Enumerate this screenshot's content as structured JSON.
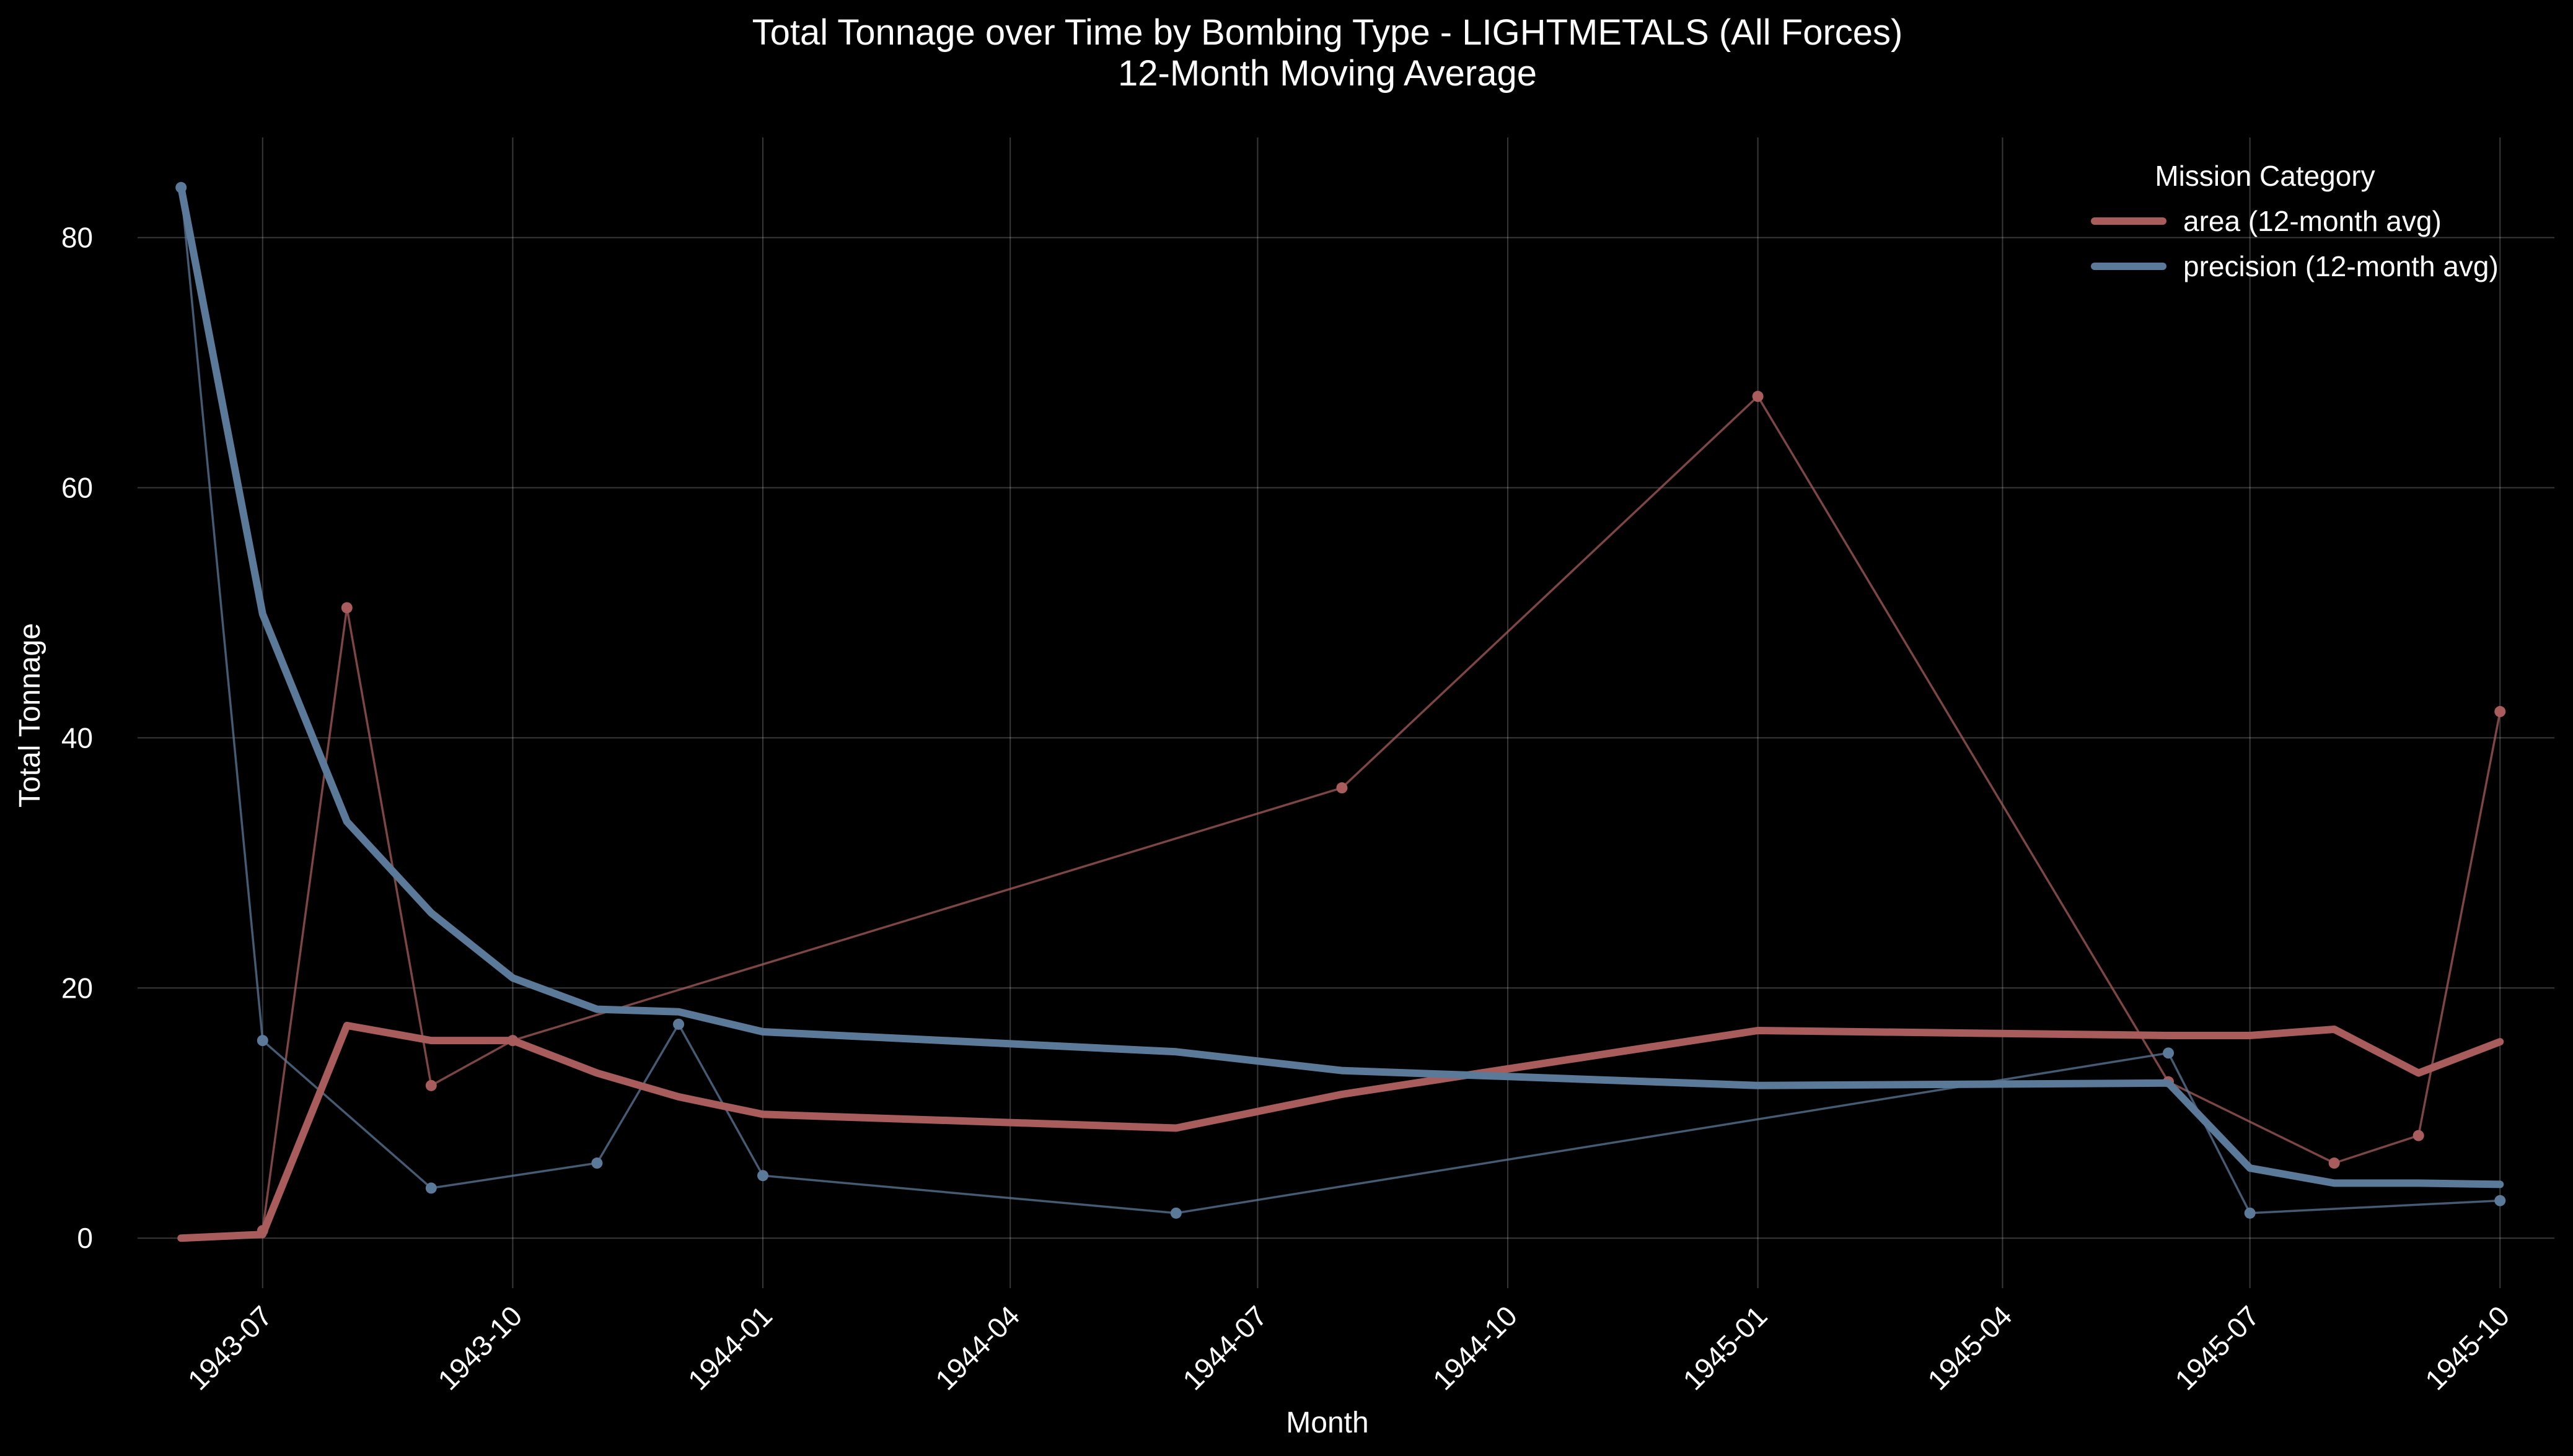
{
  "chart_data": {
    "type": "line",
    "title": "Total Tonnage over Time by Bombing Type - LIGHTMETALS (All Forces)",
    "subtitle": "12-Month Moving Average",
    "xlabel": "Month",
    "ylabel": "Total Tonnage",
    "x_ticks": [
      "1943-07",
      "1943-10",
      "1944-01",
      "1944-04",
      "1944-07",
      "1944-10",
      "1945-01",
      "1945-04",
      "1945-07",
      "1945-10"
    ],
    "y_ticks": [
      0,
      20,
      40,
      60,
      80
    ],
    "ylim": [
      -4,
      88
    ],
    "xlim": [
      "1943-05-16",
      "1945-10-21"
    ],
    "grid": true,
    "background": "#000000",
    "legend": {
      "title": "Mission Category",
      "position": "top-right",
      "entries": [
        {
          "label": "area (12-month avg)",
          "color": "#a85c5c"
        },
        {
          "label": "precision (12-month avg)",
          "color": "#5b7a99"
        }
      ]
    },
    "series": [
      {
        "key": "area_raw",
        "color": "#a85c5c",
        "kind": "raw",
        "points": [
          {
            "x": "1943-07-01",
            "y": 0.6
          },
          {
            "x": "1943-08-01",
            "y": 50.4
          },
          {
            "x": "1943-09-01",
            "y": 12.2
          },
          {
            "x": "1943-10-01",
            "y": 15.8
          },
          {
            "x": "1944-08-01",
            "y": 36.0
          },
          {
            "x": "1945-01-01",
            "y": 67.3
          },
          {
            "x": "1945-06-01",
            "y": 12.5
          },
          {
            "x": "1945-08-01",
            "y": 6.0
          },
          {
            "x": "1945-09-01",
            "y": 8.2
          },
          {
            "x": "1945-10-01",
            "y": 42.1
          }
        ]
      },
      {
        "key": "precision_raw",
        "color": "#5b7a99",
        "kind": "raw",
        "points": [
          {
            "x": "1943-06-01",
            "y": 84.0
          },
          {
            "x": "1943-07-01",
            "y": 15.8
          },
          {
            "x": "1943-09-01",
            "y": 4.0
          },
          {
            "x": "1943-11-01",
            "y": 6.0
          },
          {
            "x": "1943-12-01",
            "y": 17.1
          },
          {
            "x": "1944-01-01",
            "y": 5.0
          },
          {
            "x": "1944-06-01",
            "y": 2.0
          },
          {
            "x": "1945-06-01",
            "y": 14.8
          },
          {
            "x": "1945-07-01",
            "y": 2.0
          },
          {
            "x": "1945-10-01",
            "y": 3.0
          }
        ]
      },
      {
        "key": "area_avg",
        "name": "area (12-month avg)",
        "color": "#a85c5c",
        "kind": "avg",
        "points": [
          {
            "x": "1943-06-01",
            "y": 0.0
          },
          {
            "x": "1943-07-01",
            "y": 0.3
          },
          {
            "x": "1943-08-01",
            "y": 17.0
          },
          {
            "x": "1943-09-01",
            "y": 15.8
          },
          {
            "x": "1943-10-01",
            "y": 15.8
          },
          {
            "x": "1943-11-01",
            "y": 13.2
          },
          {
            "x": "1943-12-01",
            "y": 11.3
          },
          {
            "x": "1944-01-01",
            "y": 9.9
          },
          {
            "x": "1944-06-01",
            "y": 8.8
          },
          {
            "x": "1944-08-01",
            "y": 11.5
          },
          {
            "x": "1945-01-01",
            "y": 16.6
          },
          {
            "x": "1945-06-01",
            "y": 16.2
          },
          {
            "x": "1945-07-01",
            "y": 16.2
          },
          {
            "x": "1945-08-01",
            "y": 16.7
          },
          {
            "x": "1945-09-01",
            "y": 13.2
          },
          {
            "x": "1945-10-01",
            "y": 15.7
          }
        ]
      },
      {
        "key": "precision_avg",
        "name": "precision (12-month avg)",
        "color": "#5b7a99",
        "kind": "avg",
        "points": [
          {
            "x": "1943-06-01",
            "y": 84.0
          },
          {
            "x": "1943-07-01",
            "y": 49.9
          },
          {
            "x": "1943-08-01",
            "y": 33.3
          },
          {
            "x": "1943-09-01",
            "y": 26.0
          },
          {
            "x": "1943-10-01",
            "y": 20.8
          },
          {
            "x": "1943-11-01",
            "y": 18.3
          },
          {
            "x": "1943-12-01",
            "y": 18.1
          },
          {
            "x": "1944-01-01",
            "y": 16.5
          },
          {
            "x": "1944-06-01",
            "y": 14.9
          },
          {
            "x": "1944-08-01",
            "y": 13.4
          },
          {
            "x": "1945-01-01",
            "y": 12.2
          },
          {
            "x": "1945-06-01",
            "y": 12.4
          },
          {
            "x": "1945-07-01",
            "y": 5.6
          },
          {
            "x": "1945-08-01",
            "y": 4.4
          },
          {
            "x": "1945-09-01",
            "y": 4.4
          },
          {
            "x": "1945-10-01",
            "y": 4.3
          }
        ]
      }
    ]
  }
}
